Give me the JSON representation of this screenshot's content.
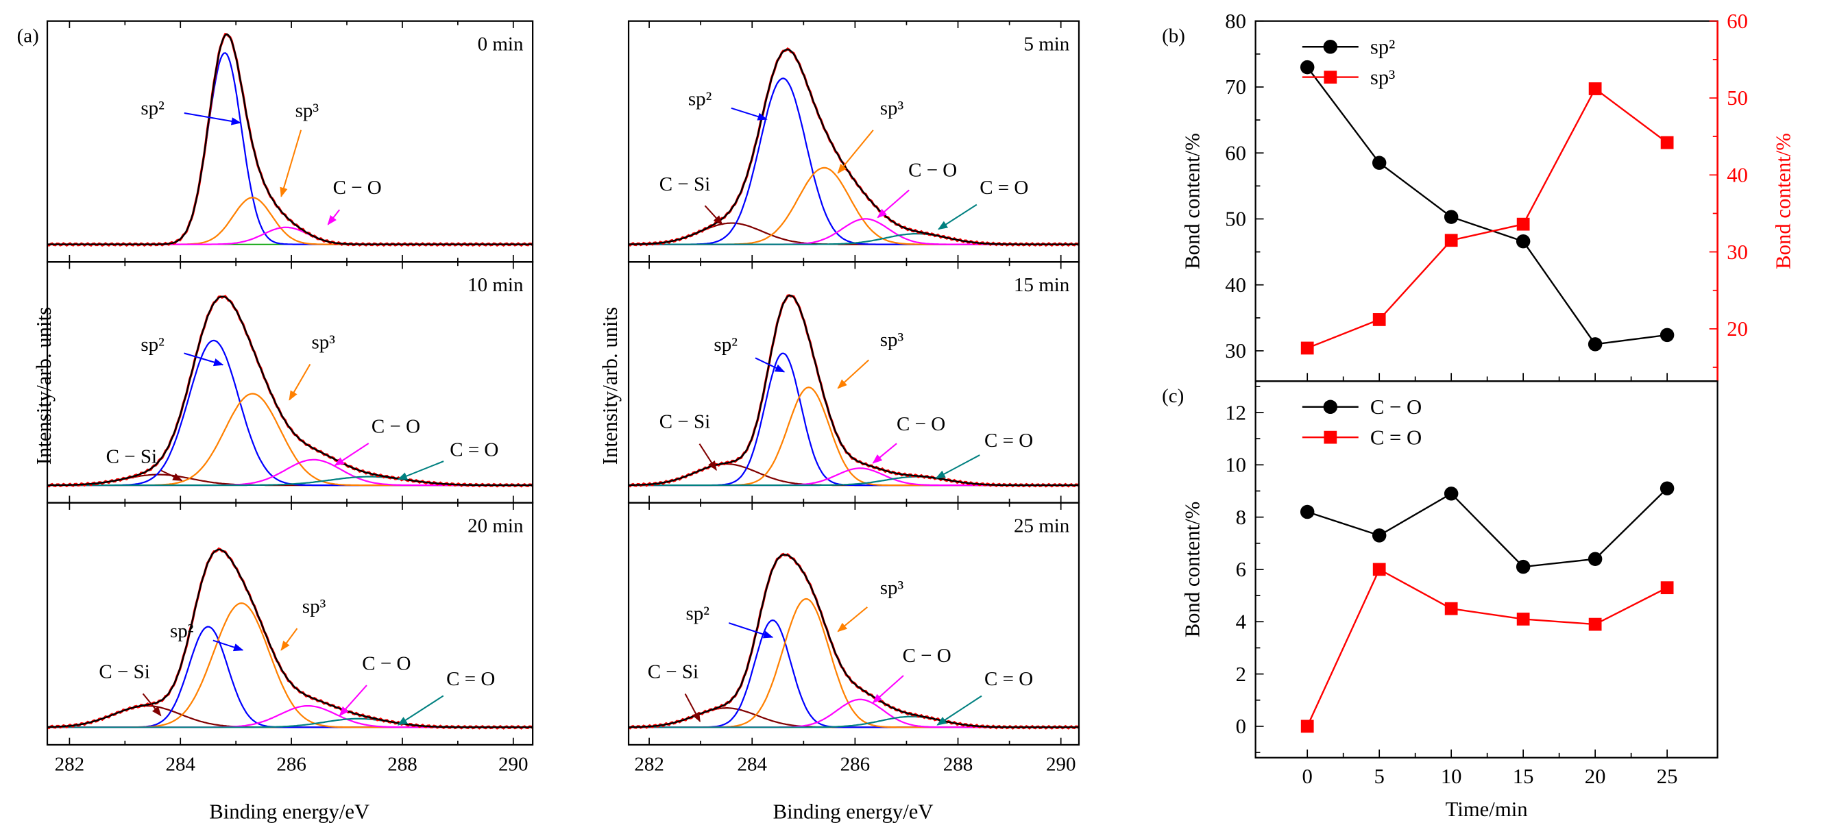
{
  "colors": {
    "sp2": "#0000ff",
    "sp3": "#ff8000",
    "CO": "#ff00ff",
    "CdO": "#008080",
    "CSi": "#800000",
    "envelope": "#000000",
    "raw": "#ff0000",
    "series_black": "#000000",
    "series_red": "#ff0000"
  },
  "chart_data": [
    {
      "id": "a",
      "type": "line",
      "panel_label": "(a)",
      "xlabel": "Binding energy/eV",
      "ylabel": "Intensity/arb. units",
      "xlim": [
        281.6,
        290.35
      ],
      "xticks": [
        282,
        284,
        286,
        288,
        290
      ],
      "component_labels": {
        "sp2": "sp²",
        "sp3": "sp³",
        "CO": "C − O",
        "CdO": "C = O",
        "CSi": "C − Si"
      },
      "panels": [
        {
          "time": "0 min",
          "components": [
            {
              "type": "sp2",
              "center": 284.8,
              "height": 0.9,
              "sigma": 0.3
            },
            {
              "type": "sp3",
              "center": 285.3,
              "height": 0.22,
              "sigma": 0.35
            },
            {
              "type": "CO",
              "center": 285.9,
              "height": 0.08,
              "sigma": 0.4
            }
          ],
          "labeled": [
            "sp2",
            "sp3",
            "CO"
          ]
        },
        {
          "time": "5 min",
          "components": [
            {
              "type": "CSi",
              "center": 283.6,
              "height": 0.1,
              "sigma": 0.6
            },
            {
              "type": "sp2",
              "center": 284.6,
              "height": 0.78,
              "sigma": 0.45
            },
            {
              "type": "sp3",
              "center": 285.4,
              "height": 0.36,
              "sigma": 0.5
            },
            {
              "type": "CO",
              "center": 286.2,
              "height": 0.12,
              "sigma": 0.45
            },
            {
              "type": "CdO",
              "center": 287.2,
              "height": 0.05,
              "sigma": 0.6
            }
          ],
          "labeled": [
            "CSi",
            "sp2",
            "sp3",
            "CO",
            "CdO"
          ]
        },
        {
          "time": "10 min",
          "components": [
            {
              "type": "CSi",
              "center": 283.6,
              "height": 0.05,
              "sigma": 0.6
            },
            {
              "type": "sp2",
              "center": 284.6,
              "height": 0.68,
              "sigma": 0.45
            },
            {
              "type": "sp3",
              "center": 285.3,
              "height": 0.43,
              "sigma": 0.5
            },
            {
              "type": "CO",
              "center": 286.4,
              "height": 0.12,
              "sigma": 0.5
            },
            {
              "type": "CdO",
              "center": 287.4,
              "height": 0.04,
              "sigma": 0.7
            }
          ],
          "labeled": [
            "CSi",
            "sp2",
            "sp3",
            "CO",
            "CdO"
          ]
        },
        {
          "time": "15 min",
          "components": [
            {
              "type": "CSi",
              "center": 283.5,
              "height": 0.1,
              "sigma": 0.6
            },
            {
              "type": "sp2",
              "center": 284.6,
              "height": 0.62,
              "sigma": 0.35
            },
            {
              "type": "sp3",
              "center": 285.1,
              "height": 0.46,
              "sigma": 0.4
            },
            {
              "type": "CO",
              "center": 286.1,
              "height": 0.08,
              "sigma": 0.45
            },
            {
              "type": "CdO",
              "center": 287.2,
              "height": 0.04,
              "sigma": 0.6
            }
          ],
          "labeled": [
            "CSi",
            "sp2",
            "sp3",
            "CO",
            "CdO"
          ]
        },
        {
          "time": "20 min",
          "components": [
            {
              "type": "CSi",
              "center": 283.4,
              "height": 0.1,
              "sigma": 0.6
            },
            {
              "type": "sp2",
              "center": 284.5,
              "height": 0.47,
              "sigma": 0.35
            },
            {
              "type": "sp3",
              "center": 285.1,
              "height": 0.58,
              "sigma": 0.5
            },
            {
              "type": "CO",
              "center": 286.3,
              "height": 0.1,
              "sigma": 0.5
            },
            {
              "type": "CdO",
              "center": 287.2,
              "height": 0.04,
              "sigma": 0.6
            }
          ],
          "labeled": [
            "CSi",
            "sp2",
            "sp3",
            "CO",
            "CdO"
          ]
        },
        {
          "time": "25 min",
          "components": [
            {
              "type": "CSi",
              "center": 283.5,
              "height": 0.09,
              "sigma": 0.6
            },
            {
              "type": "sp2",
              "center": 284.4,
              "height": 0.5,
              "sigma": 0.35
            },
            {
              "type": "sp3",
              "center": 285.05,
              "height": 0.6,
              "sigma": 0.45
            },
            {
              "type": "CO",
              "center": 286.1,
              "height": 0.13,
              "sigma": 0.45
            },
            {
              "type": "CdO",
              "center": 287.1,
              "height": 0.05,
              "sigma": 0.6
            }
          ],
          "labeled": [
            "CSi",
            "sp2",
            "sp3",
            "CO",
            "CdO"
          ]
        }
      ]
    },
    {
      "id": "b",
      "type": "line",
      "panel_label": "(b)",
      "x": [
        0,
        5,
        10,
        15,
        20,
        25
      ],
      "xlim": [
        -3.6,
        28.5
      ],
      "ylabel": "Bond content/%",
      "ylabel_right": "Bond content/%",
      "ylim": [
        25.4,
        80
      ],
      "ylim_right": [
        13.2,
        60
      ],
      "yticks": [
        30,
        40,
        50,
        60,
        70,
        80
      ],
      "yticks_right": [
        20,
        30,
        40,
        50,
        60
      ],
      "legend": "top-left",
      "series": [
        {
          "name": "sp²",
          "axis": "left",
          "marker": "circle",
          "values": [
            73,
            58.5,
            50.3,
            46.6,
            31,
            32.4
          ]
        },
        {
          "name": "sp³",
          "axis": "right",
          "marker": "square",
          "values": [
            17.5,
            21.2,
            31.5,
            33.6,
            51.2,
            44.2
          ]
        }
      ]
    },
    {
      "id": "c",
      "type": "line",
      "panel_label": "(c)",
      "x": [
        0,
        5,
        10,
        15,
        20,
        25
      ],
      "xlim": [
        -3.6,
        28.5
      ],
      "xticks": [
        0,
        5,
        10,
        15,
        20,
        25
      ],
      "xlabel": "Time/min",
      "ylabel": "Bond content/%",
      "ylim": [
        -1.2,
        13.2
      ],
      "yticks": [
        0,
        2,
        4,
        6,
        8,
        10,
        12
      ],
      "legend": "top-left",
      "series": [
        {
          "name": "C − O",
          "marker": "circle",
          "values": [
            8.2,
            7.3,
            8.9,
            6.1,
            6.4,
            9.1
          ]
        },
        {
          "name": "C = O",
          "marker": "square",
          "values": [
            0,
            6.0,
            4.5,
            4.1,
            3.9,
            5.3
          ]
        }
      ]
    }
  ]
}
